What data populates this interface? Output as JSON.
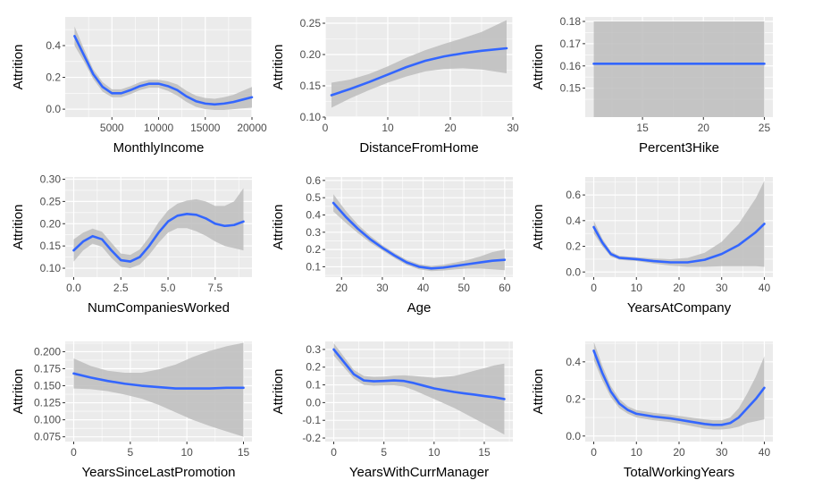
{
  "chart_data": [
    {
      "type": "line",
      "xlabel": "MonthlyIncome",
      "ylabel": "Attrition",
      "xlim": [
        0,
        20000
      ],
      "ylim": [
        -0.05,
        0.58
      ],
      "xticks": [
        5000,
        10000,
        15000,
        20000
      ],
      "xtick_labels": [
        "5000",
        "10000",
        "15000",
        "20000"
      ],
      "yticks": [
        0,
        0.2,
        0.4
      ],
      "ytick_labels": [
        "0.0",
        "0.2",
        "0.4"
      ],
      "series": [
        {
          "x": [
            1000,
            2000,
            3000,
            4000,
            5000,
            6000,
            7000,
            8000,
            9000,
            10000,
            11000,
            12000,
            13000,
            14000,
            15000,
            16000,
            17000,
            18000,
            19000,
            20000
          ],
          "y": [
            0.46,
            0.34,
            0.22,
            0.14,
            0.1,
            0.1,
            0.12,
            0.145,
            0.16,
            0.16,
            0.145,
            0.12,
            0.08,
            0.05,
            0.035,
            0.03,
            0.035,
            0.045,
            0.06,
            0.075
          ],
          "lower": [
            0.4,
            0.3,
            0.19,
            0.11,
            0.075,
            0.075,
            0.095,
            0.12,
            0.135,
            0.135,
            0.115,
            0.085,
            0.045,
            0.015,
            0.0,
            -0.005,
            -0.005,
            0.0,
            0.005,
            0.01
          ],
          "upper": [
            0.52,
            0.38,
            0.25,
            0.17,
            0.125,
            0.125,
            0.145,
            0.17,
            0.185,
            0.185,
            0.175,
            0.155,
            0.115,
            0.085,
            0.07,
            0.065,
            0.075,
            0.09,
            0.115,
            0.14
          ]
        }
      ],
      "grid": true,
      "colors": {
        "line": "#3366FF",
        "band": "#BDBDBD",
        "panel": "#EBEBEB",
        "grid": "#FFFFFF"
      }
    },
    {
      "type": "line",
      "xlabel": "DistanceFromHome",
      "ylabel": "Attrition",
      "xlim": [
        0,
        30
      ],
      "ylim": [
        0.1,
        0.26
      ],
      "xticks": [
        0,
        10,
        20,
        30
      ],
      "xtick_labels": [
        "0",
        "10",
        "20",
        "30"
      ],
      "yticks": [
        0.1,
        0.15,
        0.2,
        0.25
      ],
      "ytick_labels": [
        "0.10",
        "0.15",
        "0.20",
        "0.25"
      ],
      "series": [
        {
          "x": [
            1,
            4,
            7,
            10,
            13,
            16,
            19,
            22,
            25,
            29
          ],
          "y": [
            0.135,
            0.145,
            0.156,
            0.168,
            0.18,
            0.19,
            0.197,
            0.202,
            0.206,
            0.21
          ],
          "lower": [
            0.115,
            0.13,
            0.143,
            0.155,
            0.165,
            0.173,
            0.177,
            0.178,
            0.176,
            0.17
          ],
          "upper": [
            0.155,
            0.16,
            0.169,
            0.181,
            0.195,
            0.207,
            0.217,
            0.226,
            0.236,
            0.255
          ]
        }
      ],
      "grid": true,
      "colors": {
        "line": "#3366FF",
        "band": "#BDBDBD",
        "panel": "#EBEBEB",
        "grid": "#FFFFFF"
      }
    },
    {
      "type": "line",
      "xlabel": "Percent3Hike",
      "ylabel": "Attrition",
      "xlim": [
        10.3,
        25.7
      ],
      "ylim": [
        0.137,
        0.182
      ],
      "xticks": [
        15,
        20,
        25
      ],
      "xtick_labels": [
        "15",
        "20",
        "25"
      ],
      "yticks": [
        0.15,
        0.16,
        0.17,
        0.18
      ],
      "ytick_labels": [
        "0.15",
        "0.16",
        "0.17",
        "0.18"
      ],
      "series": [
        {
          "x": [
            11,
            25
          ],
          "y": [
            0.161,
            0.161
          ],
          "lower": [
            0.137,
            0.137
          ],
          "upper": [
            0.18,
            0.18
          ]
        }
      ],
      "grid": true,
      "colors": {
        "line": "#3366FF",
        "band": "#BDBDBD",
        "panel": "#EBEBEB",
        "grid": "#FFFFFF"
      }
    },
    {
      "type": "line",
      "xlabel": "NumCompaniesWorked",
      "ylabel": "Attrition",
      "xlim": [
        -0.45,
        9.45
      ],
      "ylim": [
        0.08,
        0.305
      ],
      "xticks": [
        0,
        2.5,
        5,
        7.5
      ],
      "xtick_labels": [
        "0.0",
        "2.5",
        "5.0",
        "7.5"
      ],
      "yticks": [
        0.1,
        0.15,
        0.2,
        0.25,
        0.3
      ],
      "ytick_labels": [
        "0.10",
        "0.15",
        "0.20",
        "0.25",
        "0.30"
      ],
      "series": [
        {
          "x": [
            0,
            0.5,
            1,
            1.5,
            2,
            2.5,
            3,
            3.5,
            4,
            4.5,
            5,
            5.5,
            6,
            6.5,
            7,
            7.5,
            8,
            8.5,
            9
          ],
          "y": [
            0.14,
            0.16,
            0.172,
            0.165,
            0.14,
            0.118,
            0.115,
            0.125,
            0.15,
            0.18,
            0.205,
            0.218,
            0.222,
            0.22,
            0.212,
            0.2,
            0.195,
            0.197,
            0.205
          ],
          "lower": [
            0.115,
            0.14,
            0.155,
            0.148,
            0.123,
            0.103,
            0.1,
            0.108,
            0.13,
            0.157,
            0.18,
            0.19,
            0.19,
            0.183,
            0.173,
            0.16,
            0.15,
            0.145,
            0.14
          ],
          "upper": [
            0.165,
            0.18,
            0.189,
            0.182,
            0.157,
            0.133,
            0.13,
            0.142,
            0.17,
            0.203,
            0.23,
            0.245,
            0.252,
            0.255,
            0.25,
            0.24,
            0.24,
            0.25,
            0.28
          ]
        }
      ],
      "grid": true,
      "colors": {
        "line": "#3366FF",
        "band": "#BDBDBD",
        "panel": "#EBEBEB",
        "grid": "#FFFFFF"
      }
    },
    {
      "type": "line",
      "xlabel": "Age",
      "ylabel": "Attrition",
      "xlim": [
        16,
        62
      ],
      "ylim": [
        0.04,
        0.62
      ],
      "xticks": [
        20,
        30,
        40,
        50,
        60
      ],
      "xtick_labels": [
        "20",
        "30",
        "40",
        "50",
        "60"
      ],
      "yticks": [
        0.1,
        0.2,
        0.3,
        0.4,
        0.5,
        0.6
      ],
      "ytick_labels": [
        "0.1",
        "0.2",
        "0.3",
        "0.4",
        "0.5",
        "0.6"
      ],
      "series": [
        {
          "x": [
            18,
            21,
            24,
            27,
            30,
            33,
            36,
            39,
            42,
            45,
            48,
            51,
            54,
            57,
            60
          ],
          "y": [
            0.47,
            0.39,
            0.32,
            0.26,
            0.21,
            0.165,
            0.125,
            0.1,
            0.09,
            0.095,
            0.105,
            0.115,
            0.125,
            0.135,
            0.14
          ],
          "lower": [
            0.42,
            0.355,
            0.295,
            0.24,
            0.195,
            0.15,
            0.11,
            0.085,
            0.075,
            0.078,
            0.085,
            0.09,
            0.09,
            0.085,
            0.08
          ],
          "upper": [
            0.52,
            0.425,
            0.345,
            0.28,
            0.225,
            0.18,
            0.14,
            0.115,
            0.105,
            0.112,
            0.125,
            0.14,
            0.16,
            0.185,
            0.2
          ]
        }
      ],
      "grid": true,
      "colors": {
        "line": "#3366FF",
        "band": "#BDBDBD",
        "panel": "#EBEBEB",
        "grid": "#FFFFFF"
      }
    },
    {
      "type": "line",
      "xlabel": "YearsAtCompany",
      "ylabel": "Attrition",
      "xlim": [
        -2,
        42
      ],
      "ylim": [
        -0.04,
        0.74
      ],
      "xticks": [
        0,
        10,
        20,
        30,
        40
      ],
      "xtick_labels": [
        "0",
        "10",
        "20",
        "30",
        "40"
      ],
      "yticks": [
        0,
        0.2,
        0.4,
        0.6
      ],
      "ytick_labels": [
        "0.0",
        "0.2",
        "0.4",
        "0.6"
      ],
      "series": [
        {
          "x": [
            0,
            2,
            4,
            6,
            8,
            10,
            14,
            18,
            22,
            26,
            30,
            34,
            38,
            40
          ],
          "y": [
            0.35,
            0.23,
            0.14,
            0.11,
            0.105,
            0.1,
            0.085,
            0.075,
            0.075,
            0.095,
            0.14,
            0.21,
            0.31,
            0.375
          ],
          "lower": [
            0.3,
            0.2,
            0.12,
            0.095,
            0.09,
            0.085,
            0.065,
            0.05,
            0.04,
            0.04,
            0.045,
            0.045,
            0.045,
            0.04
          ],
          "upper": [
            0.4,
            0.26,
            0.16,
            0.125,
            0.12,
            0.115,
            0.105,
            0.1,
            0.11,
            0.15,
            0.235,
            0.375,
            0.575,
            0.71
          ]
        }
      ],
      "grid": true,
      "colors": {
        "line": "#3366FF",
        "band": "#BDBDBD",
        "panel": "#EBEBEB",
        "grid": "#FFFFFF"
      }
    },
    {
      "type": "line",
      "xlabel": "YearsSinceLastPromotion",
      "ylabel": "Attrition",
      "xlim": [
        -0.75,
        15.75
      ],
      "ylim": [
        0.068,
        0.215
      ],
      "xticks": [
        0,
        5,
        10,
        15
      ],
      "xtick_labels": [
        "0",
        "5",
        "10",
        "15"
      ],
      "yticks": [
        0.075,
        0.1,
        0.125,
        0.15,
        0.175,
        0.2
      ],
      "ytick_labels": [
        "0.075",
        "0.100",
        "0.125",
        "0.150",
        "0.175",
        "0.200"
      ],
      "series": [
        {
          "x": [
            0,
            1.5,
            3,
            4.5,
            6,
            7.5,
            9,
            10.5,
            12,
            13.5,
            15
          ],
          "y": [
            0.168,
            0.162,
            0.157,
            0.153,
            0.15,
            0.148,
            0.146,
            0.146,
            0.146,
            0.147,
            0.147
          ],
          "lower": [
            0.146,
            0.145,
            0.142,
            0.137,
            0.131,
            0.122,
            0.111,
            0.1,
            0.091,
            0.083,
            0.075
          ],
          "upper": [
            0.19,
            0.179,
            0.172,
            0.169,
            0.169,
            0.174,
            0.181,
            0.192,
            0.201,
            0.208,
            0.213
          ]
        }
      ],
      "grid": true,
      "colors": {
        "line": "#3366FF",
        "band": "#BDBDBD",
        "panel": "#EBEBEB",
        "grid": "#FFFFFF"
      }
    },
    {
      "type": "line",
      "xlabel": "YearsWithCurrManager",
      "ylabel": "Attrition",
      "xlim": [
        -0.85,
        17.85
      ],
      "ylim": [
        -0.22,
        0.345
      ],
      "xticks": [
        0,
        5,
        10,
        15
      ],
      "xtick_labels": [
        "0",
        "5",
        "10",
        "15"
      ],
      "yticks": [
        -0.2,
        -0.1,
        0,
        0.1,
        0.2,
        0.3
      ],
      "ytick_labels": [
        "-0.2",
        "-0.1",
        "0.0",
        "0.1",
        "0.2",
        "0.3"
      ],
      "series": [
        {
          "x": [
            0,
            1,
            2,
            3,
            4,
            5,
            6,
            7,
            8,
            9,
            10,
            11,
            12,
            13,
            14,
            15,
            16,
            17
          ],
          "y": [
            0.3,
            0.23,
            0.16,
            0.125,
            0.12,
            0.122,
            0.125,
            0.122,
            0.11,
            0.095,
            0.08,
            0.07,
            0.06,
            0.052,
            0.045,
            0.037,
            0.03,
            0.02
          ],
          "lower": [
            0.265,
            0.2,
            0.135,
            0.1,
            0.095,
            0.097,
            0.098,
            0.09,
            0.07,
            0.045,
            0.02,
            -0.005,
            -0.03,
            -0.06,
            -0.09,
            -0.12,
            -0.15,
            -0.18
          ],
          "upper": [
            0.335,
            0.26,
            0.185,
            0.15,
            0.145,
            0.147,
            0.152,
            0.154,
            0.15,
            0.145,
            0.14,
            0.145,
            0.15,
            0.164,
            0.18,
            0.194,
            0.21,
            0.22
          ]
        }
      ],
      "grid": true,
      "colors": {
        "line": "#3366FF",
        "band": "#BDBDBD",
        "panel": "#EBEBEB",
        "grid": "#FFFFFF"
      }
    },
    {
      "type": "line",
      "xlabel": "TotalWorkingYears",
      "ylabel": "Attrition",
      "xlim": [
        -2,
        42
      ],
      "ylim": [
        -0.03,
        0.51
      ],
      "xticks": [
        0,
        10,
        20,
        30,
        40
      ],
      "xtick_labels": [
        "0",
        "10",
        "20",
        "30",
        "40"
      ],
      "yticks": [
        0,
        0.2,
        0.4
      ],
      "ytick_labels": [
        "0.0",
        "0.2",
        "0.4"
      ],
      "series": [
        {
          "x": [
            0,
            2,
            4,
            6,
            8,
            10,
            14,
            18,
            22,
            26,
            28,
            30,
            32,
            34,
            36,
            38,
            40
          ],
          "y": [
            0.46,
            0.34,
            0.24,
            0.175,
            0.14,
            0.12,
            0.105,
            0.095,
            0.08,
            0.065,
            0.06,
            0.06,
            0.07,
            0.1,
            0.15,
            0.2,
            0.26
          ],
          "lower": [
            0.41,
            0.3,
            0.21,
            0.15,
            0.12,
            0.1,
            0.085,
            0.075,
            0.058,
            0.04,
            0.035,
            0.035,
            0.04,
            0.05,
            0.07,
            0.08,
            0.09
          ],
          "upper": [
            0.51,
            0.38,
            0.27,
            0.2,
            0.16,
            0.14,
            0.125,
            0.115,
            0.102,
            0.09,
            0.085,
            0.085,
            0.1,
            0.15,
            0.23,
            0.32,
            0.43
          ]
        }
      ],
      "grid": true,
      "colors": {
        "line": "#3366FF",
        "band": "#BDBDBD",
        "panel": "#EBEBEB",
        "grid": "#FFFFFF"
      }
    }
  ]
}
